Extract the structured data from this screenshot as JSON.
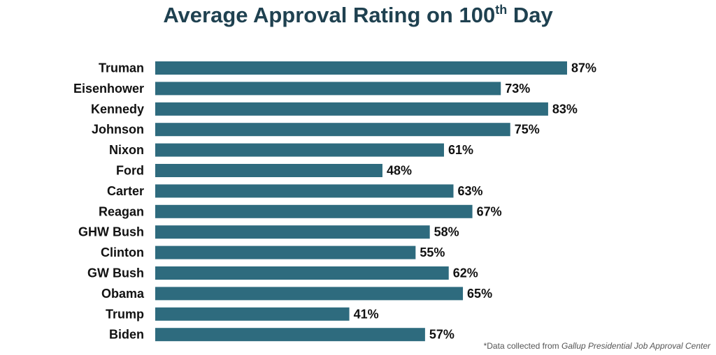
{
  "chart_data": {
    "type": "bar",
    "orientation": "horizontal",
    "title_main": "Average Approval Rating on 100",
    "title_sup": "th",
    "title_end": " Day",
    "categories": [
      "Truman",
      "Eisenhower",
      "Kennedy",
      "Johnson",
      "Nixon",
      "Ford",
      "Carter",
      "Reagan",
      "GHW Bush",
      "Clinton",
      "GW Bush",
      "Obama",
      "Trump",
      "Biden"
    ],
    "values": [
      87,
      73,
      83,
      75,
      61,
      48,
      63,
      67,
      58,
      55,
      62,
      65,
      41,
      57
    ],
    "value_suffix": "%",
    "xlim": [
      0,
      87
    ],
    "grid": false,
    "bar_color": "#2e6b7e"
  },
  "footnote": {
    "prefix": "*Data collected from ",
    "source": "Gallup Presidential Job Approval Center"
  }
}
